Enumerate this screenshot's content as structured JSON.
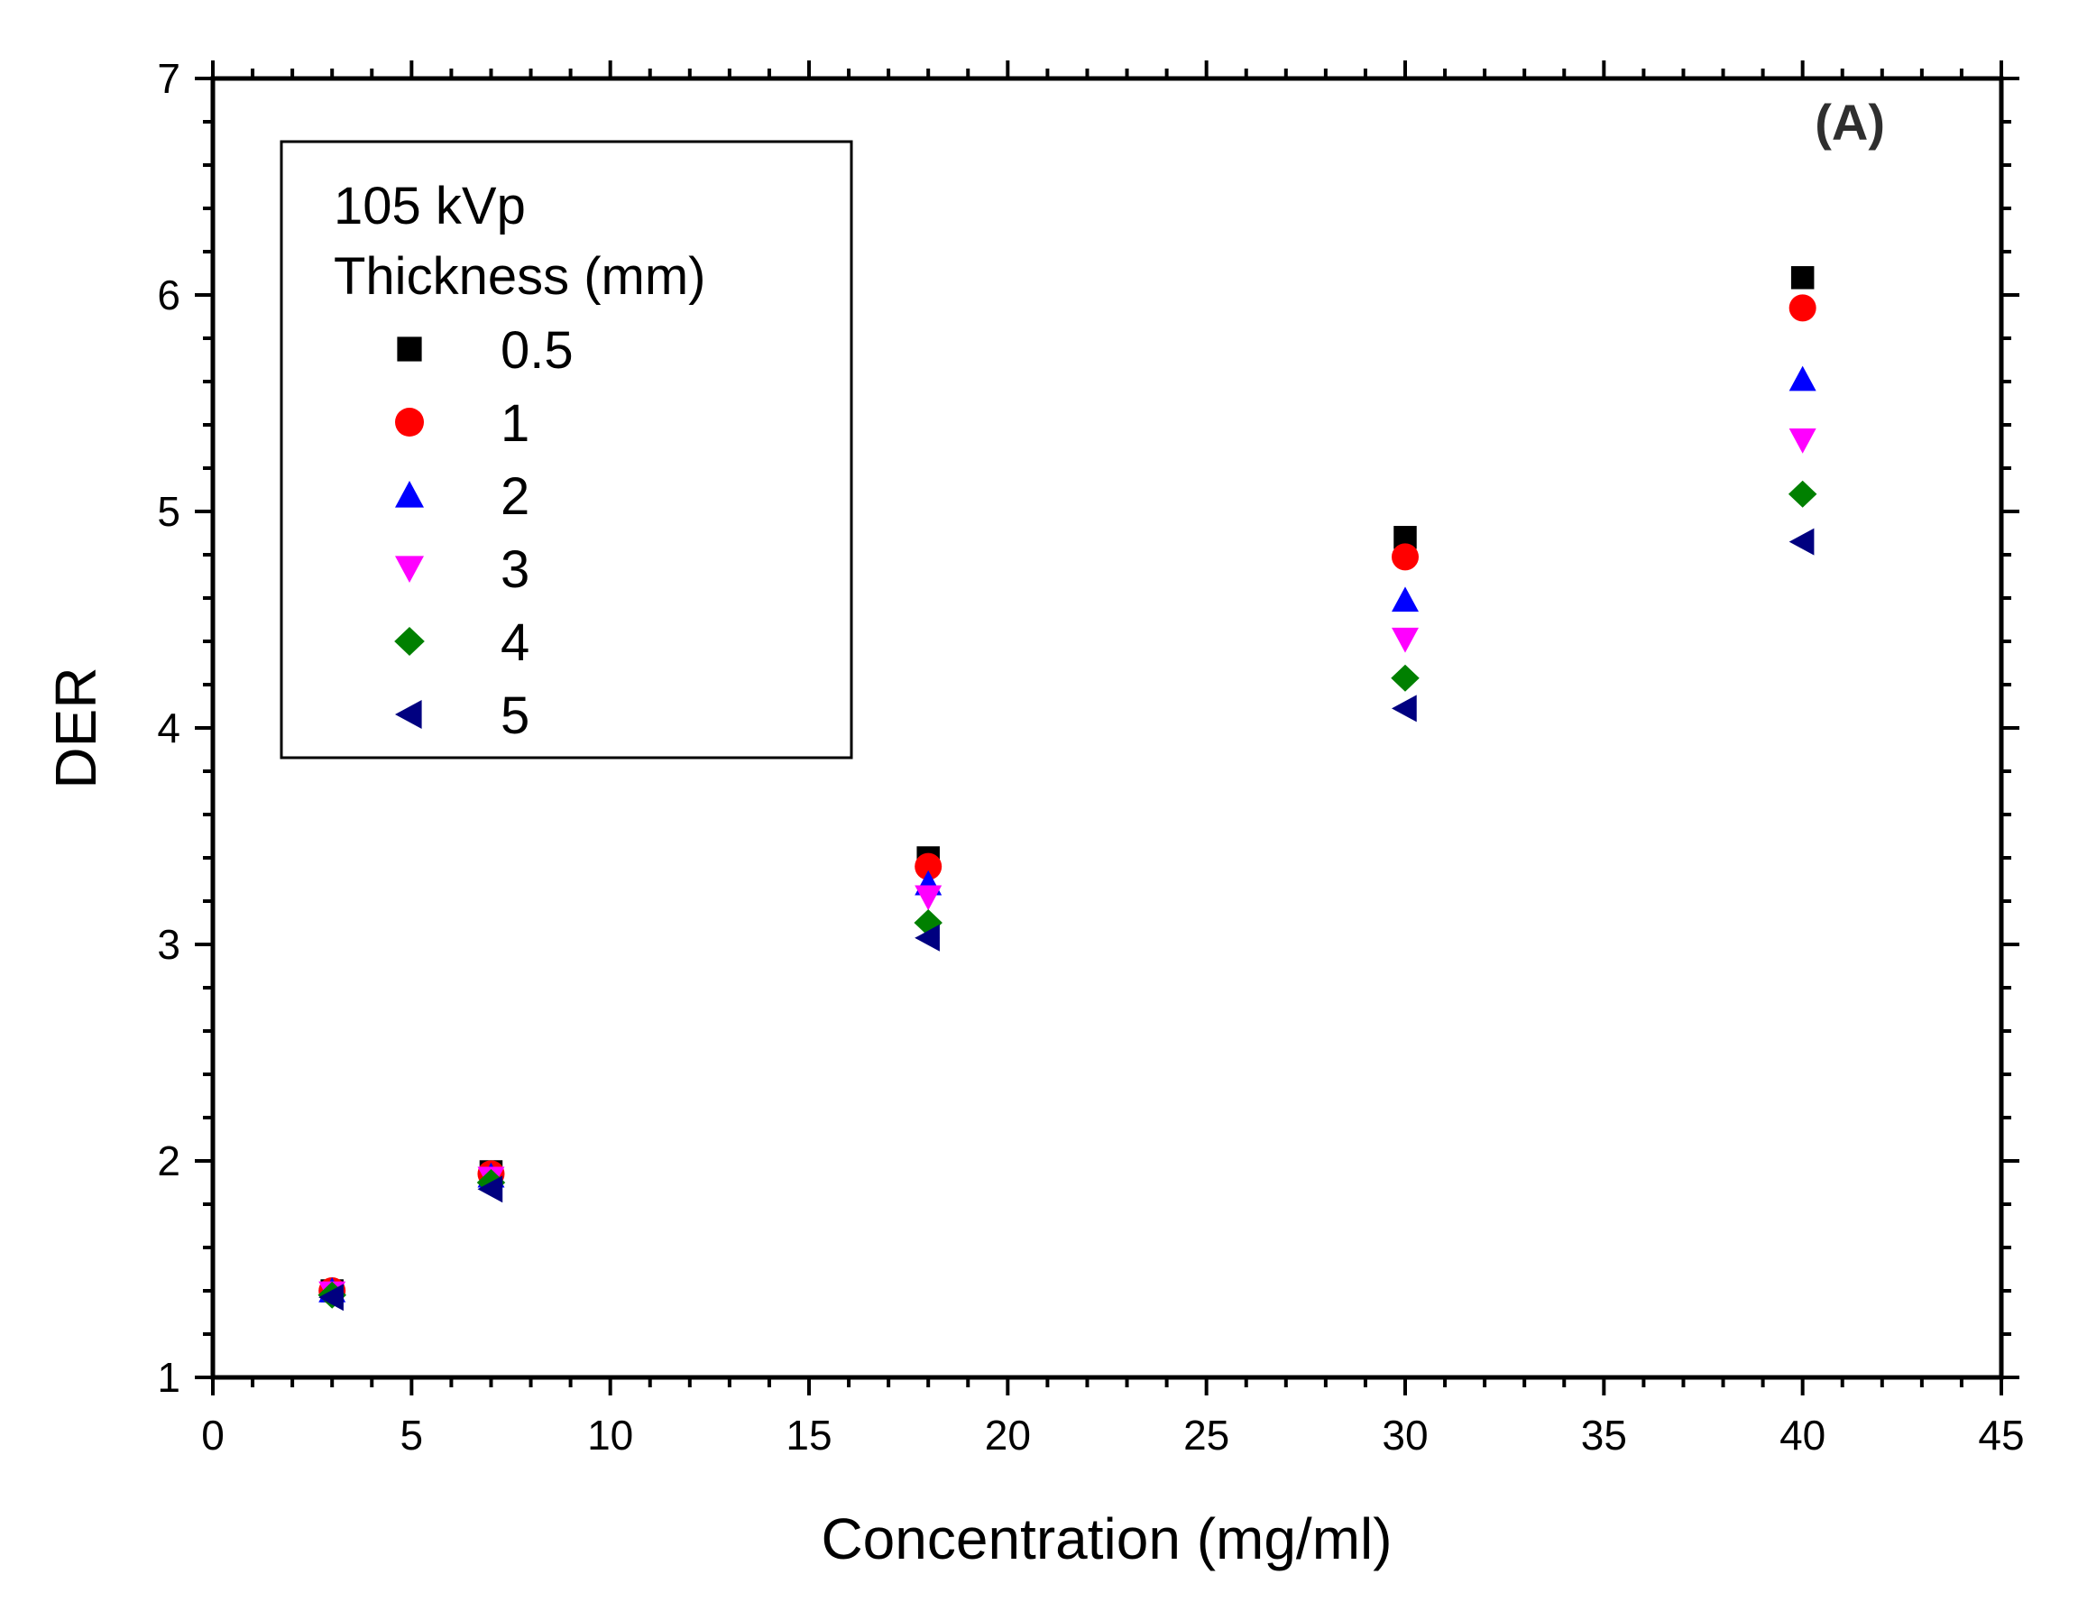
{
  "chart_data": {
    "type": "scatter",
    "title": "",
    "panel_label": "(A)",
    "xlabel": "Concentration (mg/ml)",
    "ylabel": "DER",
    "xlim": [
      0,
      45
    ],
    "ylim": [
      1,
      7
    ],
    "x_ticks": [
      0,
      5,
      10,
      15,
      20,
      25,
      30,
      35,
      40,
      45
    ],
    "y_ticks": [
      1,
      2,
      3,
      4,
      5,
      6,
      7
    ],
    "grid": false,
    "legend": {
      "placement": "top-left",
      "title_line1": "105 kVp",
      "title_line2": "Thickness (mm)"
    },
    "x": [
      3,
      7,
      18,
      30,
      40
    ],
    "series": [
      {
        "name": "0.5",
        "marker": "square",
        "color": "#000000",
        "values": [
          1.4,
          1.95,
          3.4,
          4.88,
          6.08
        ]
      },
      {
        "name": "1",
        "marker": "circle",
        "color": "#ff0000",
        "values": [
          1.4,
          1.94,
          3.36,
          4.79,
          5.94
        ]
      },
      {
        "name": "2",
        "marker": "triangle-up",
        "color": "#0000ff",
        "values": [
          1.4,
          1.93,
          3.28,
          4.59,
          5.61
        ]
      },
      {
        "name": "3",
        "marker": "triangle-down",
        "color": "#ff00ff",
        "values": [
          1.39,
          1.92,
          3.22,
          4.41,
          5.33
        ]
      },
      {
        "name": "4",
        "marker": "diamond",
        "color": "#008000",
        "values": [
          1.38,
          1.9,
          3.1,
          4.23,
          5.08
        ]
      },
      {
        "name": "5",
        "marker": "triangle-left",
        "color": "#000080",
        "values": [
          1.37,
          1.87,
          3.03,
          4.09,
          4.86
        ]
      }
    ]
  }
}
